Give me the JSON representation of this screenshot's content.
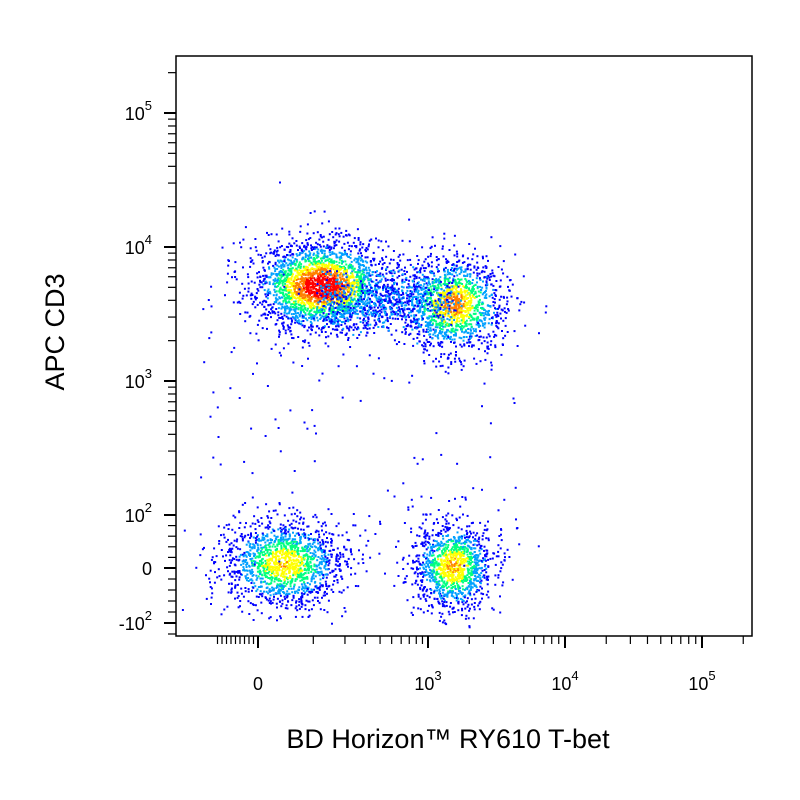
{
  "chart_data": {
    "type": "scatter",
    "subtype": "flow-cytometry-density-dot-plot",
    "xlabel": "BD Horizon™ RY610  T-bet",
    "ylabel": "APC  CD3",
    "x_scale": "biexponential",
    "y_scale": "biexponential",
    "xlim": [
      -100,
      200000
    ],
    "ylim": [
      -150,
      250000
    ],
    "x_ticks": [
      {
        "value": 0,
        "base": "0",
        "exp": ""
      },
      {
        "value": 1000,
        "base": "10",
        "exp": "3"
      },
      {
        "value": 10000,
        "base": "10",
        "exp": "4"
      },
      {
        "value": 100000,
        "base": "10",
        "exp": "5"
      }
    ],
    "y_ticks": [
      {
        "value": -100,
        "base": "-10",
        "exp": "2"
      },
      {
        "value": 0,
        "base": "0",
        "exp": ""
      },
      {
        "value": 100,
        "base": "10",
        "exp": "2"
      },
      {
        "value": 1000,
        "base": "10",
        "exp": "3"
      },
      {
        "value": 10000,
        "base": "10",
        "exp": "4"
      },
      {
        "value": 100000,
        "base": "10",
        "exp": "5"
      }
    ],
    "grid": false,
    "legend": "none",
    "color_scale": [
      "#0000ff",
      "#00a0ff",
      "#00ff80",
      "#ffff00",
      "#ff8000",
      "#ff0000"
    ],
    "populations": [
      {
        "x_center": 120,
        "y_center": 5200,
        "density": "high"
      },
      {
        "x_center": 1500,
        "y_center": 3800,
        "density": "medium"
      },
      {
        "x_center": 40,
        "y_center": 10,
        "density": "medium"
      },
      {
        "x_center": 1500,
        "y_center": 5,
        "density": "medium"
      }
    ]
  }
}
